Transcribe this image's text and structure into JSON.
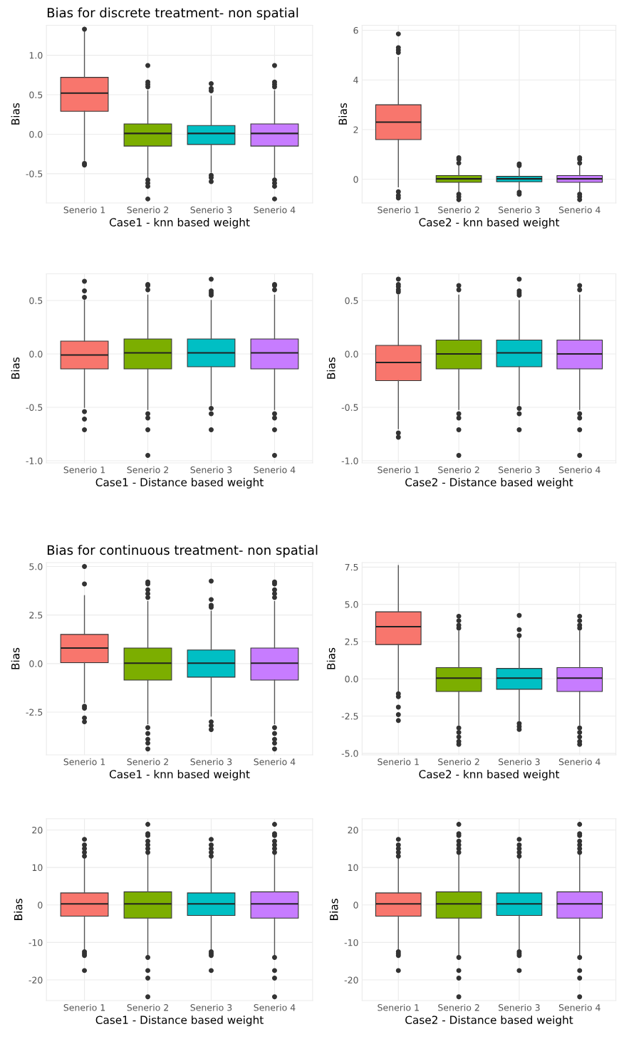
{
  "chart_data": [
    {
      "type": "box",
      "title": "Bias for discrete treatment- non spatial",
      "xlabel": "Case1 - knn based weight",
      "ylabel": "Bias",
      "categories": [
        "Senerio 1",
        "Senerio 2",
        "Senerio 3",
        "Senerio 4"
      ],
      "colors": [
        "#f8766d",
        "#7cae00",
        "#00bfc4",
        "#c77cff"
      ],
      "ylim": [
        -0.87,
        1.38
      ],
      "yticks": [
        -0.5,
        {
          "value": 0,
          "label": "0.0"
        },
        0.5,
        {
          "value": 1,
          "label": "1.0"
        }
      ],
      "grid": true,
      "boxes": [
        {
          "low": -0.33,
          "q1": 0.29,
          "median": 0.52,
          "q3": 0.72,
          "high": 1.3,
          "outliers": [
            1.33,
            -0.37,
            -0.39
          ]
        },
        {
          "low": -0.55,
          "q1": -0.15,
          "median": 0.01,
          "q3": 0.13,
          "high": 0.55,
          "outliers": [
            0.6,
            0.63,
            0.66,
            0.87,
            -0.58,
            -0.62,
            -0.66,
            -0.82
          ]
        },
        {
          "low": -0.48,
          "q1": -0.13,
          "median": 0.01,
          "q3": 0.11,
          "high": 0.48,
          "outliers": [
            0.55,
            0.58,
            0.64,
            -0.52,
            -0.55,
            -0.6
          ]
        },
        {
          "low": -0.55,
          "q1": -0.15,
          "median": 0.01,
          "q3": 0.13,
          "high": 0.55,
          "outliers": [
            0.6,
            0.63,
            0.66,
            0.87,
            -0.58,
            -0.62,
            -0.66,
            -0.82
          ]
        }
      ]
    },
    {
      "type": "box",
      "xlabel": "Case2 - knn based weight",
      "ylabel": "Bias",
      "categories": [
        "Senerio 1",
        "Senerio 2",
        "Senerio 3",
        "Senerio 4"
      ],
      "colors": [
        "#f8766d",
        "#7cae00",
        "#00bfc4",
        "#c77cff"
      ],
      "ylim": [
        -0.95,
        6.2
      ],
      "yticks": [
        0,
        2,
        4,
        6
      ],
      "grid": true,
      "boxes": [
        {
          "low": -0.3,
          "q1": 1.6,
          "median": 2.3,
          "q3": 3.0,
          "high": 4.9,
          "outliers": [
            5.1,
            5.2,
            5.3,
            5.85,
            -0.5,
            -0.65,
            -0.75
          ]
        },
        {
          "low": -0.5,
          "q1": -0.12,
          "median": 0.02,
          "q3": 0.15,
          "high": 0.55,
          "outliers": [
            0.65,
            0.8,
            0.87,
            -0.6,
            -0.7,
            -0.82
          ]
        },
        {
          "low": -0.45,
          "q1": -0.1,
          "median": 0.02,
          "q3": 0.12,
          "high": 0.45,
          "outliers": [
            0.55,
            0.62,
            -0.52,
            -0.6
          ]
        },
        {
          "low": -0.5,
          "q1": -0.12,
          "median": 0.02,
          "q3": 0.15,
          "high": 0.55,
          "outliers": [
            0.65,
            0.8,
            0.87,
            -0.6,
            -0.7,
            -0.82
          ]
        }
      ]
    },
    {
      "type": "box",
      "xlabel": "Case1 - Distance based weight",
      "ylabel": "Bias",
      "categories": [
        "Senerio 1",
        "Senerio 2",
        "Senerio 3",
        "Senerio 4"
      ],
      "colors": [
        "#f8766d",
        "#7cae00",
        "#00bfc4",
        "#c77cff"
      ],
      "ylim": [
        -1.02,
        0.75
      ],
      "yticks": [
        {
          "value": -1,
          "label": "-1.0"
        },
        -0.5,
        {
          "value": 0,
          "label": "0.0"
        },
        0.5
      ],
      "grid": true,
      "boxes": [
        {
          "low": -0.5,
          "q1": -0.14,
          "median": -0.01,
          "q3": 0.12,
          "high": 0.5,
          "outliers": [
            0.53,
            0.59,
            0.68,
            -0.54,
            -0.61,
            -0.71
          ]
        },
        {
          "low": -0.52,
          "q1": -0.14,
          "median": 0.01,
          "q3": 0.14,
          "high": 0.55,
          "outliers": [
            0.6,
            0.64,
            0.65,
            -0.56,
            -0.6,
            -0.71,
            -0.95
          ]
        },
        {
          "low": -0.48,
          "q1": -0.12,
          "median": 0.01,
          "q3": 0.14,
          "high": 0.5,
          "outliers": [
            0.55,
            0.57,
            0.59,
            0.7,
            -0.51,
            -0.56,
            -0.71
          ]
        },
        {
          "low": -0.52,
          "q1": -0.14,
          "median": 0.01,
          "q3": 0.14,
          "high": 0.55,
          "outliers": [
            0.6,
            0.64,
            0.65,
            -0.56,
            -0.6,
            -0.71,
            -0.95
          ]
        }
      ]
    },
    {
      "type": "box",
      "xlabel": "Case2 - Distance based weight",
      "ylabel": "Bias",
      "categories": [
        "Senerio 1",
        "Senerio 2",
        "Senerio 3",
        "Senerio 4"
      ],
      "colors": [
        "#f8766d",
        "#7cae00",
        "#00bfc4",
        "#c77cff"
      ],
      "ylim": [
        -1.02,
        0.75
      ],
      "yticks": [
        {
          "value": -1,
          "label": "-1.0"
        },
        -0.5,
        {
          "value": 0,
          "label": "0.0"
        },
        0.5
      ],
      "grid": true,
      "boxes": [
        {
          "low": -0.7,
          "q1": -0.25,
          "median": -0.08,
          "q3": 0.08,
          "high": 0.55,
          "outliers": [
            0.58,
            0.6,
            0.63,
            0.65,
            0.7,
            -0.74,
            -0.78
          ]
        },
        {
          "low": -0.52,
          "q1": -0.14,
          "median": 0.0,
          "q3": 0.13,
          "high": 0.55,
          "outliers": [
            0.6,
            0.64,
            -0.56,
            -0.6,
            -0.71,
            -0.95
          ]
        },
        {
          "low": -0.48,
          "q1": -0.12,
          "median": 0.01,
          "q3": 0.13,
          "high": 0.5,
          "outliers": [
            0.55,
            0.57,
            0.59,
            0.7,
            -0.51,
            -0.56,
            -0.71
          ]
        },
        {
          "low": -0.52,
          "q1": -0.14,
          "median": 0.0,
          "q3": 0.13,
          "high": 0.55,
          "outliers": [
            0.6,
            0.64,
            -0.56,
            -0.6,
            -0.71,
            -0.95
          ]
        }
      ]
    },
    {
      "type": "box",
      "title": "Bias for continuous treatment- non spatial",
      "xlabel": "Case1 - knn based weight",
      "ylabel": "Bias",
      "categories": [
        "Senerio 1",
        "Senerio 2",
        "Senerio 3",
        "Senerio 4"
      ],
      "colors": [
        "#f8766d",
        "#7cae00",
        "#00bfc4",
        "#c77cff"
      ],
      "ylim": [
        -4.7,
        5.2
      ],
      "yticks": [
        -2.5,
        {
          "value": 0,
          "label": "0.0"
        },
        2.5,
        {
          "value": 5,
          "label": "5.0"
        }
      ],
      "grid": true,
      "boxes": [
        {
          "low": -2.0,
          "q1": 0.05,
          "median": 0.8,
          "q3": 1.5,
          "high": 3.5,
          "outliers": [
            4.1,
            5.0,
            -2.2,
            -2.3,
            -2.8,
            -3.0
          ]
        },
        {
          "low": -3.1,
          "q1": -0.85,
          "median": 0.02,
          "q3": 0.8,
          "high": 3.2,
          "outliers": [
            3.4,
            3.6,
            3.8,
            4.1,
            4.2,
            -3.3,
            -3.6,
            -3.9,
            -4.1,
            -4.4
          ]
        },
        {
          "low": -2.7,
          "q1": -0.7,
          "median": 0.02,
          "q3": 0.7,
          "high": 2.7,
          "outliers": [
            2.9,
            3.0,
            3.3,
            4.25,
            -3.0,
            -3.2,
            -3.4
          ]
        },
        {
          "low": -3.1,
          "q1": -0.85,
          "median": 0.02,
          "q3": 0.8,
          "high": 3.2,
          "outliers": [
            3.4,
            3.6,
            3.8,
            4.1,
            4.2,
            -3.3,
            -3.6,
            -3.9,
            -4.1,
            -4.4
          ]
        }
      ]
    },
    {
      "type": "box",
      "xlabel": "Case2 - knn based weight",
      "ylabel": "Bias",
      "categories": [
        "Senerio 1",
        "Senerio 2",
        "Senerio 3",
        "Senerio 4"
      ],
      "colors": [
        "#f8766d",
        "#7cae00",
        "#00bfc4",
        "#c77cff"
      ],
      "ylim": [
        -5.1,
        7.8
      ],
      "yticks": [
        {
          "value": -5,
          "label": "-5.0"
        },
        -2.5,
        {
          "value": 0,
          "label": "0.0"
        },
        2.5,
        {
          "value": 5,
          "label": "5.0"
        },
        7.5
      ],
      "grid": true,
      "boxes": [
        {
          "low": -0.9,
          "q1": 2.3,
          "median": 3.5,
          "q3": 4.5,
          "high": 7.6,
          "outliers": [
            -1.0,
            -1.2,
            -1.9,
            -2.4,
            -2.8
          ]
        },
        {
          "low": -3.1,
          "q1": -0.85,
          "median": 0.05,
          "q3": 0.75,
          "high": 3.2,
          "outliers": [
            3.4,
            3.6,
            3.9,
            4.2,
            -3.3,
            -3.6,
            -3.9,
            -4.2,
            -4.4
          ]
        },
        {
          "low": -2.8,
          "q1": -0.7,
          "median": 0.05,
          "q3": 0.7,
          "high": 2.7,
          "outliers": [
            2.9,
            3.3,
            4.25,
            -3.0,
            -3.2,
            -3.4
          ]
        },
        {
          "low": -3.1,
          "q1": -0.85,
          "median": 0.05,
          "q3": 0.75,
          "high": 3.2,
          "outliers": [
            3.4,
            3.6,
            3.9,
            4.2,
            -3.3,
            -3.6,
            -3.9,
            -4.2,
            -4.4
          ]
        }
      ]
    },
    {
      "type": "box",
      "xlabel": "Case1 - Distance based weight",
      "ylabel": "Bias",
      "categories": [
        "Senerio 1",
        "Senerio 2",
        "Senerio 3",
        "Senerio 4"
      ],
      "colors": [
        "#f8766d",
        "#7cae00",
        "#00bfc4",
        "#c77cff"
      ],
      "ylim": [
        -25.5,
        23
      ],
      "yticks": [
        -20,
        -10,
        0,
        10,
        20
      ],
      "grid": true,
      "boxes": [
        {
          "low": -12,
          "q1": -3.0,
          "median": 0.3,
          "q3": 3.2,
          "high": 12.5,
          "outliers": [
            13,
            14,
            15,
            16,
            17.5,
            -12.5,
            -13,
            -13.5,
            -17.5
          ]
        },
        {
          "low": -13.5,
          "q1": -3.5,
          "median": 0.3,
          "q3": 3.5,
          "high": 13.5,
          "outliers": [
            14,
            15,
            16,
            17,
            18.5,
            19,
            21.5,
            -14,
            -17.5,
            -19.5,
            -24.5
          ]
        },
        {
          "low": -12,
          "q1": -2.8,
          "median": 0.3,
          "q3": 3.2,
          "high": 12.5,
          "outliers": [
            13,
            14,
            15,
            16,
            17.5,
            -12.5,
            -13,
            -13.5,
            -17.5
          ]
        },
        {
          "low": -13.5,
          "q1": -3.5,
          "median": 0.3,
          "q3": 3.5,
          "high": 13.5,
          "outliers": [
            14,
            15,
            16,
            17,
            18.5,
            19,
            21.5,
            -14,
            -17.5,
            -19.5,
            -24.5
          ]
        }
      ]
    },
    {
      "type": "box",
      "xlabel": "Case2 - Distance based weight",
      "ylabel": "Bias",
      "categories": [
        "Senerio 1",
        "Senerio 2",
        "Senerio 3",
        "Senerio 4"
      ],
      "colors": [
        "#f8766d",
        "#7cae00",
        "#00bfc4",
        "#c77cff"
      ],
      "ylim": [
        -25.5,
        23
      ],
      "yticks": [
        -20,
        -10,
        0,
        10,
        20
      ],
      "grid": true,
      "boxes": [
        {
          "low": -12,
          "q1": -3.0,
          "median": 0.3,
          "q3": 3.2,
          "high": 12.5,
          "outliers": [
            13,
            14,
            15,
            16,
            17.5,
            -12.5,
            -13,
            -13.5,
            -17.5
          ]
        },
        {
          "low": -13.5,
          "q1": -3.5,
          "median": 0.3,
          "q3": 3.5,
          "high": 13.5,
          "outliers": [
            14,
            15,
            16,
            17,
            18.5,
            19,
            21.5,
            -14,
            -17.5,
            -19.5,
            -24.5
          ]
        },
        {
          "low": -12,
          "q1": -2.8,
          "median": 0.3,
          "q3": 3.2,
          "high": 12.5,
          "outliers": [
            13,
            14,
            15,
            16,
            17.5,
            -12.5,
            -13,
            -13.5,
            -17.5
          ]
        },
        {
          "low": -13.5,
          "q1": -3.5,
          "median": 0.3,
          "q3": 3.5,
          "high": 13.5,
          "outliers": [
            14,
            15,
            16,
            17,
            18.5,
            19,
            21.5,
            -14,
            -17.5,
            -19.5,
            -24.5
          ]
        }
      ]
    }
  ]
}
